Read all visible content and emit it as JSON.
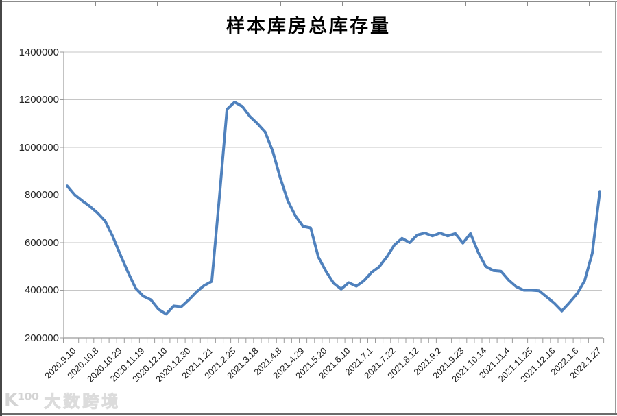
{
  "chart_data": {
    "type": "line",
    "title": "样本库房总库存量",
    "legend": "none",
    "grid": "horizontal",
    "ylim": [
      200000,
      1400000
    ],
    "ytick_step": 200000,
    "y_tick_labels": [
      "1400000",
      "1200000",
      "1000000",
      "800000",
      "600000",
      "400000",
      "200000"
    ],
    "x_label_every": 3,
    "x_labels": [
      "2020.9.10",
      "2020.10.8",
      "2020.10.29",
      "2020.11.19",
      "2020.12.10",
      "2020.12.30",
      "2021.1.21",
      "2021.2.25",
      "2021.3.18",
      "2021.4.8",
      "2021.4.29",
      "2021.5.20",
      "2021.6.10",
      "2021.7.1",
      "2021.7.22",
      "2021.8.12",
      "2021.9.2",
      "2021.9.23",
      "2021.10.14",
      "2021.11.4",
      "2021.11.25",
      "2021.12.16",
      "2022.1.6",
      "2022.1.27"
    ],
    "series": [
      {
        "name": "样本库房总库存量",
        "color": "#4F81BD",
        "values": [
          838000,
          800000,
          775000,
          752000,
          724000,
          690000,
          625000,
          548000,
          475000,
          408000,
          375000,
          360000,
          320000,
          300000,
          334000,
          331000,
          360000,
          393000,
          420000,
          437000,
          790000,
          1160000,
          1190000,
          1172000,
          1130000,
          1100000,
          1065000,
          985000,
          872000,
          775000,
          712000,
          668000,
          662000,
          540000,
          480000,
          430000,
          405000,
          432000,
          417000,
          440000,
          475000,
          498000,
          540000,
          590000,
          618000,
          600000,
          632000,
          640000,
          628000,
          640000,
          628000,
          638000,
          598000,
          638000,
          560000,
          500000,
          483000,
          480000,
          443000,
          415000,
          400000,
          400000,
          398000,
          372000,
          346000,
          313000,
          348000,
          385000,
          440000,
          555000,
          815000
        ]
      }
    ],
    "colors": {
      "gridline": "#c6c6c6",
      "axis": "#9b9b9b",
      "tick_text": "#262626"
    }
  },
  "watermark": {
    "logo_text": "K¹⁰⁰",
    "text": "大数跨境"
  }
}
